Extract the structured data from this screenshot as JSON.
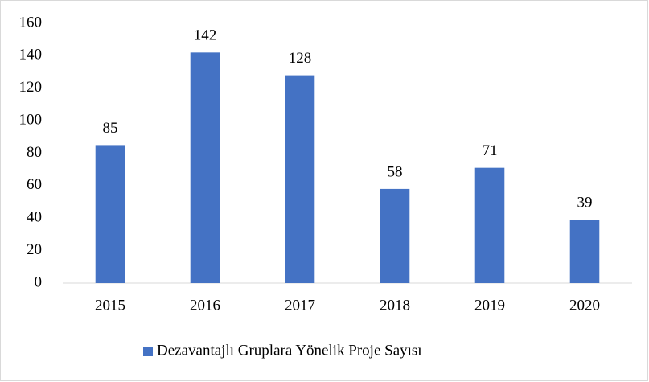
{
  "chart_data": {
    "type": "bar",
    "categories": [
      "2015",
      "2016",
      "2017",
      "2018",
      "2019",
      "2020"
    ],
    "series": [
      {
        "name": "Dezavantajlı Gruplara Yönelik Proje Sayısı",
        "color": "#4472c4",
        "values": [
          85,
          142,
          128,
          58,
          71,
          39
        ]
      }
    ],
    "ylim": [
      0,
      160
    ],
    "yticks": [
      0,
      20,
      40,
      60,
      80,
      100,
      120,
      140,
      160
    ],
    "grid": false,
    "data_labels": true,
    "legend": "bottom"
  }
}
